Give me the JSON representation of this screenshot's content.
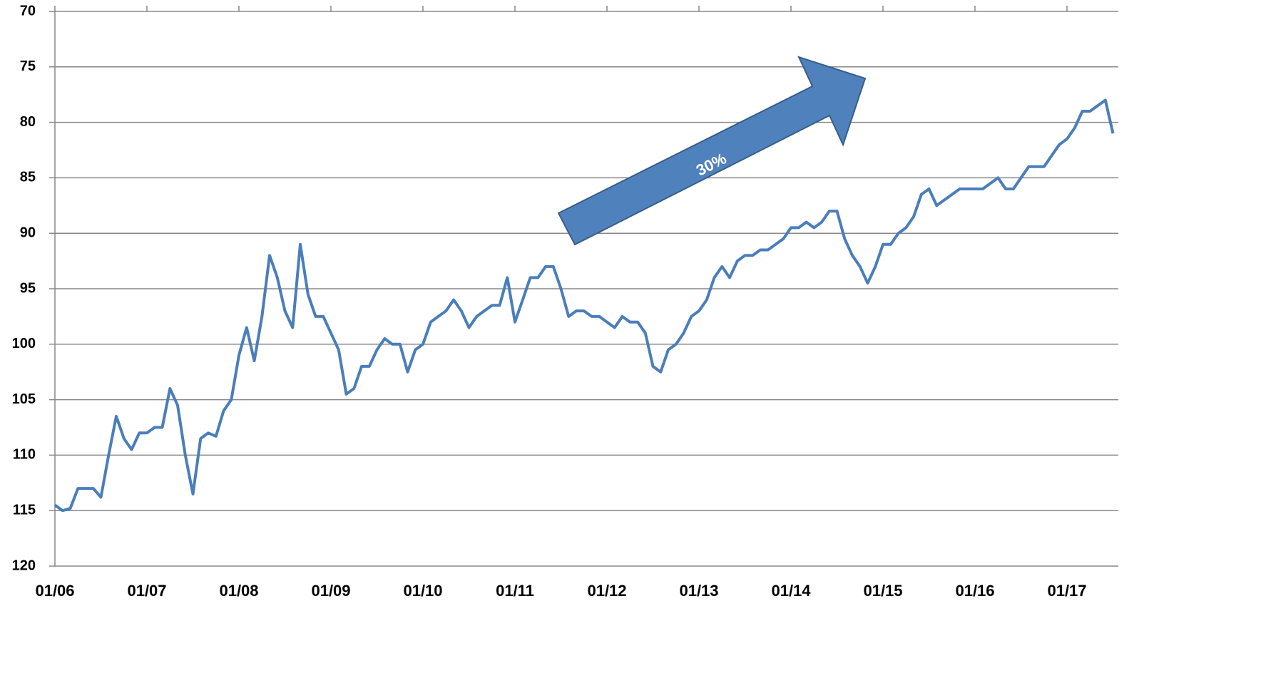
{
  "chart_data": {
    "type": "line",
    "annotation": "30%",
    "categories": [
      "01/06",
      null,
      null,
      null,
      null,
      null,
      null,
      null,
      null,
      null,
      null,
      null,
      "01/07",
      null,
      null,
      null,
      null,
      null,
      null,
      null,
      null,
      null,
      null,
      null,
      "01/08",
      null,
      null,
      null,
      null,
      null,
      null,
      null,
      null,
      null,
      null,
      null,
      "01/09",
      null,
      null,
      null,
      null,
      null,
      null,
      null,
      null,
      null,
      null,
      null,
      "01/10",
      null,
      null,
      null,
      null,
      null,
      null,
      null,
      null,
      null,
      null,
      null,
      "01/11",
      null,
      null,
      null,
      null,
      null,
      null,
      null,
      null,
      null,
      null,
      null,
      "01/12",
      null,
      null,
      null,
      null,
      null,
      null,
      null,
      null,
      null,
      null,
      null,
      "01/13",
      null,
      null,
      null,
      null,
      null,
      null,
      null,
      null,
      null,
      null,
      null,
      "01/14",
      null,
      null,
      null,
      null,
      null,
      null,
      null,
      null,
      null,
      null,
      null,
      "01/15",
      null,
      null,
      null,
      null,
      null,
      null,
      null,
      null,
      null,
      null,
      null,
      "01/16",
      null,
      null,
      null,
      null,
      null,
      null,
      null,
      null,
      null,
      null,
      null,
      "01/17",
      null,
      null,
      null,
      null,
      null,
      null
    ],
    "series": [
      {
        "color": "#4a7ebb",
        "values": [
          114.5,
          115,
          114.8,
          113,
          113,
          113,
          113.8,
          110,
          106.5,
          108.5,
          109.5,
          108,
          108,
          107.5,
          107.5,
          104,
          105.5,
          110,
          113.5,
          108.5,
          108,
          108.3,
          106,
          105,
          101,
          98.5,
          101.5,
          97.5,
          92,
          94,
          97,
          98.5,
          91,
          95.5,
          97.5,
          97.5,
          99,
          100.5,
          104.5,
          104,
          102,
          102,
          100.5,
          99.5,
          100,
          100,
          102.5,
          100.5,
          100,
          98,
          97.5,
          97,
          96,
          97,
          98.5,
          97.5,
          97,
          96.5,
          96.5,
          94,
          98,
          96,
          94,
          94,
          93,
          93,
          95,
          97.5,
          97,
          97,
          97.5,
          97.5,
          98,
          98.5,
          97.5,
          98,
          98,
          99,
          102,
          102.5,
          100.5,
          100,
          99,
          97.5,
          97,
          96,
          94,
          93,
          94,
          92.5,
          92,
          92,
          91.5,
          91.5,
          91,
          90.5,
          89.5,
          89.5,
          89,
          89.5,
          89,
          88,
          88,
          90.5,
          92,
          93,
          94.5,
          93,
          91,
          91,
          90,
          89.5,
          88.5,
          86.5,
          86,
          87.5,
          87,
          86.5,
          86,
          86,
          86,
          86,
          85.5,
          85,
          86,
          86,
          85,
          84,
          84,
          84,
          83,
          82,
          81.5,
          80.5,
          79,
          79,
          78.5,
          78,
          81
        ]
      }
    ],
    "ylim": [
      70,
      120
    ],
    "y_reversed": true,
    "yticks": [
      70,
      75,
      80,
      85,
      90,
      95,
      100,
      105,
      110,
      115,
      120
    ],
    "grid": true
  }
}
